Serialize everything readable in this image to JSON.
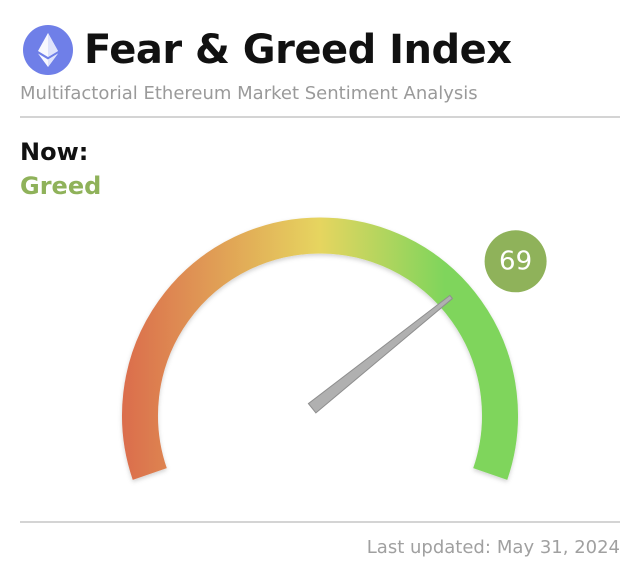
{
  "header": {
    "logo_icon": "ethereum-icon",
    "title": "Fear & Greed Index",
    "subtitle": "Multifactorial Ethereum Market Sentiment Analysis"
  },
  "current": {
    "label": "Now:",
    "sentiment": "Greed",
    "sentiment_color": "#8fb25a",
    "value": 69,
    "value_text": "69",
    "badge_color": "#8fb25a"
  },
  "gauge": {
    "min": 0,
    "max": 100,
    "colors": {
      "fear": "#db6e4d",
      "neutral": "#e6d55f",
      "greed": "#7fd55c",
      "needle": "#b0b0b0"
    }
  },
  "footer": {
    "updated_label": "Last updated:",
    "updated_date": "May 31, 2024"
  }
}
